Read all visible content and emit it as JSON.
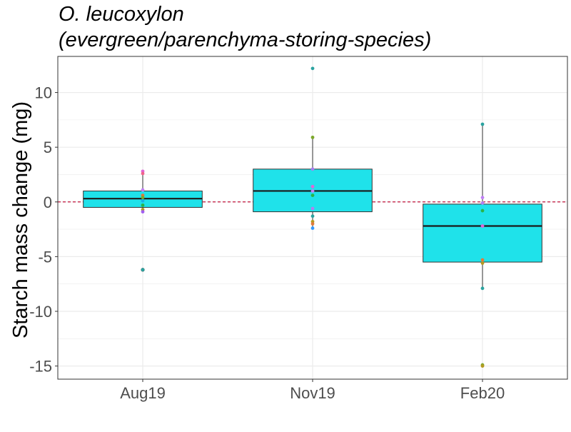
{
  "chart_data": {
    "type": "box",
    "title_lines": [
      "O. leucoxylon",
      "(evergreen/parenchyma-storing-species)"
    ],
    "xlabel": "",
    "ylabel": "Starch mass change (mg)",
    "categories": [
      "Aug19",
      "Nov19",
      "Feb20"
    ],
    "ylim": [
      -16.2,
      13.3
    ],
    "yticks": [
      -15,
      -10,
      -5,
      0,
      5,
      10
    ],
    "ytick_labels": [
      "-15",
      "-10",
      "-5",
      "0",
      "5",
      "10"
    ],
    "grid": true,
    "reference_line": {
      "y": 0,
      "color": "#c0143c",
      "style": "dashed"
    },
    "box_fill": "#1fe2ea",
    "boxes": [
      {
        "category": "Aug19",
        "q1": -0.5,
        "median": 0.3,
        "q3": 1.0,
        "whisker_low": -1.0,
        "whisker_high": 2.6
      },
      {
        "category": "Nov19",
        "q1": -0.9,
        "median": 1.0,
        "q3": 3.0,
        "whisker_low": -2.4,
        "whisker_high": 5.9
      },
      {
        "category": "Feb20",
        "q1": -5.5,
        "median": -2.2,
        "q3": -0.2,
        "whisker_low": -7.9,
        "whisker_high": 7.1
      }
    ],
    "outliers": [
      {
        "category": "Aug19",
        "y": -6.2,
        "color": "#2ba3a0"
      }
    ],
    "points": [
      {
        "category": "Aug19",
        "y": 2.8,
        "color": "#e066d6"
      },
      {
        "category": "Aug19",
        "y": 2.6,
        "color": "#f0648c"
      },
      {
        "category": "Aug19",
        "y": 1.1,
        "color": "#c080f5"
      },
      {
        "category": "Aug19",
        "y": 0.6,
        "color": "#e07a3c"
      },
      {
        "category": "Aug19",
        "y": 0.4,
        "color": "#7ca82b"
      },
      {
        "category": "Aug19",
        "y": 0.1,
        "color": "#19b0e5"
      },
      {
        "category": "Aug19",
        "y": -0.3,
        "color": "#29b44a"
      },
      {
        "category": "Aug19",
        "y": -0.7,
        "color": "#b59a20"
      },
      {
        "category": "Aug19",
        "y": -0.9,
        "color": "#a25ef0"
      },
      {
        "category": "Aug19",
        "y": -6.2,
        "color": "#2ba3a0"
      },
      {
        "category": "Nov19",
        "y": 12.2,
        "color": "#2ba3a0"
      },
      {
        "category": "Nov19",
        "y": 5.9,
        "color": "#7ca82b"
      },
      {
        "category": "Nov19",
        "y": 3.0,
        "color": "#a880f0"
      },
      {
        "category": "Nov19",
        "y": 1.4,
        "color": "#e066d6"
      },
      {
        "category": "Nov19",
        "y": 1.0,
        "color": "#c080f5"
      },
      {
        "category": "Nov19",
        "y": 0.6,
        "color": "#29b44a"
      },
      {
        "category": "Nov19",
        "y": -0.6,
        "color": "#b080f0"
      },
      {
        "category": "Nov19",
        "y": -1.3,
        "color": "#2ba3a0"
      },
      {
        "category": "Nov19",
        "y": -1.8,
        "color": "#b59a20"
      },
      {
        "category": "Nov19",
        "y": -2.0,
        "color": "#e07a3c"
      },
      {
        "category": "Nov19",
        "y": -2.4,
        "color": "#3399ff"
      },
      {
        "category": "Feb20",
        "y": 7.1,
        "color": "#2ba3a0"
      },
      {
        "category": "Feb20",
        "y": 0.4,
        "color": "#c080f5"
      },
      {
        "category": "Feb20",
        "y": -0.1,
        "color": "#b080f0"
      },
      {
        "category": "Feb20",
        "y": -0.8,
        "color": "#29b44a"
      },
      {
        "category": "Feb20",
        "y": -2.2,
        "color": "#e066d6"
      },
      {
        "category": "Feb20",
        "y": -5.3,
        "color": "#e07a3c"
      },
      {
        "category": "Feb20",
        "y": -5.6,
        "color": "#b59a20"
      },
      {
        "category": "Feb20",
        "y": -7.9,
        "color": "#2ba3a0"
      },
      {
        "category": "Feb20",
        "y": -14.9,
        "color": "#7ca82b"
      },
      {
        "category": "Feb20",
        "y": -15.0,
        "color": "#b59a20"
      }
    ]
  }
}
